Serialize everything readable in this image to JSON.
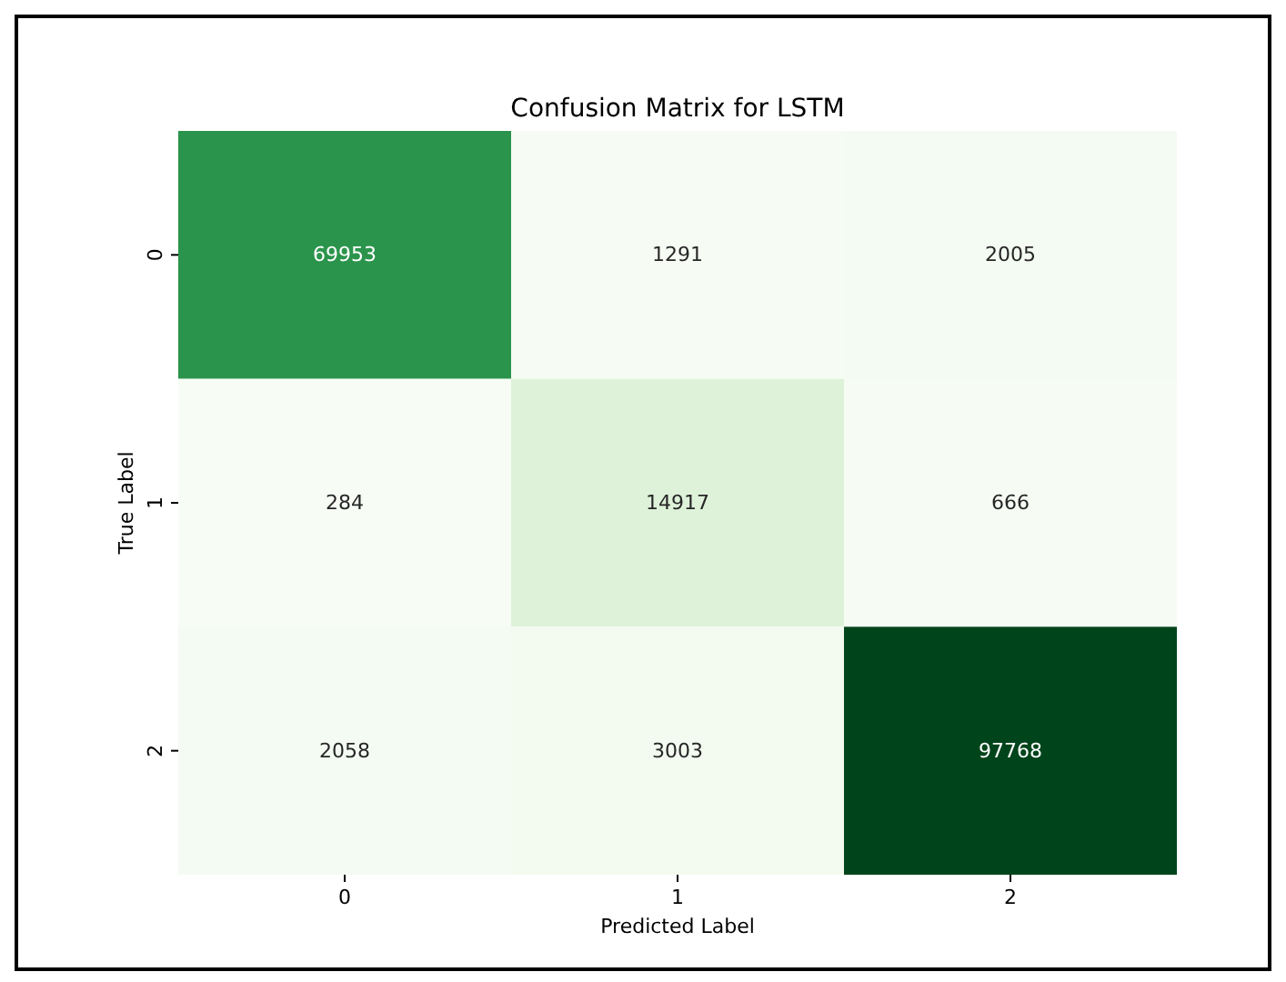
{
  "chart_data": {
    "type": "heatmap",
    "title": "Confusion Matrix for LSTM",
    "xlabel": "Predicted Label",
    "ylabel": "True Label",
    "categories": [
      "0",
      "1",
      "2"
    ],
    "y_categories": [
      "0",
      "1",
      "2"
    ],
    "cells": [
      [
        69953,
        1291,
        2005
      ],
      [
        284,
        14917,
        666
      ],
      [
        2058,
        3003,
        97768
      ]
    ],
    "data_labels": true
  }
}
